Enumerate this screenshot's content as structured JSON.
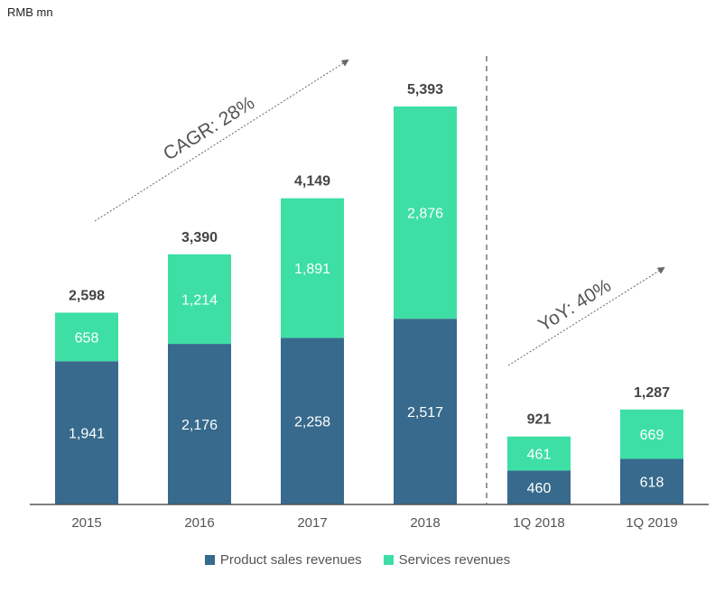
{
  "unit_label": "RMB mn",
  "colors": {
    "product": "#376a8c",
    "services": "#3ddfa5",
    "axis": "#555555",
    "guide": "#777777"
  },
  "chart_data": {
    "type": "bar",
    "stacked": true,
    "categories": [
      "2015",
      "2016",
      "2017",
      "2018",
      "1Q 2018",
      "1Q 2019"
    ],
    "series": [
      {
        "name": "Product sales revenues",
        "values": [
          1941,
          2176,
          2258,
          2517,
          460,
          618
        ],
        "labels": [
          "1,941",
          "2,176",
          "2,258",
          "2,517",
          "460",
          "618"
        ]
      },
      {
        "name": "Services revenues",
        "values": [
          658,
          1214,
          1891,
          2876,
          461,
          669
        ],
        "labels": [
          "658",
          "1,214",
          "1,891",
          "2,876",
          "461",
          "669"
        ]
      }
    ],
    "totals": [
      2598,
      3390,
      4149,
      5393,
      921,
      1287
    ],
    "total_labels": [
      "2,598",
      "3,390",
      "4,149",
      "5,393",
      "921",
      "1,287"
    ],
    "annotations": [
      {
        "text": "CAGR: 28%",
        "from": "2015",
        "to": "2018"
      },
      {
        "text": "YoY: 40%",
        "from": "1Q 2018",
        "to": "1Q 2019"
      }
    ],
    "segment_split_after": "2018",
    "legend": [
      "Product sales revenues",
      "Services revenues"
    ],
    "ylim": [
      0,
      5393
    ]
  }
}
